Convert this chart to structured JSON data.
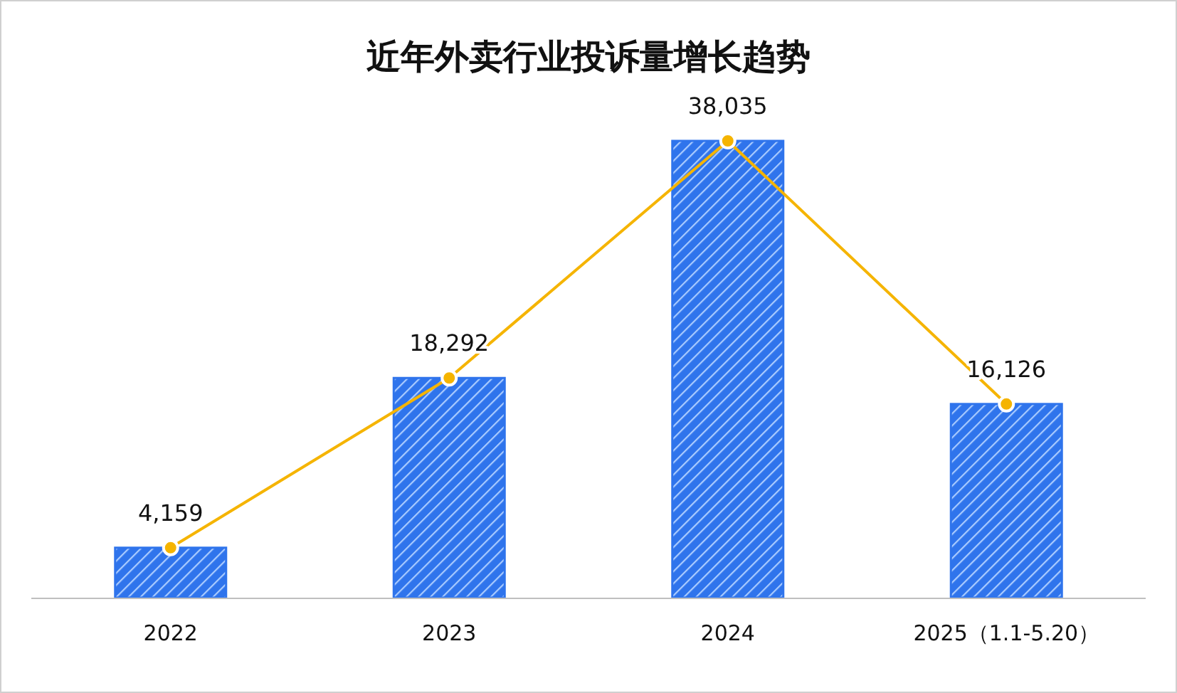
{
  "chart_data": {
    "type": "bar",
    "title": "近年外卖行业投诉量增长趋势",
    "categories": [
      "2022",
      "2023",
      "2024",
      "2025（1.1-5.20）"
    ],
    "series": [
      {
        "color": "#2f74ec",
        "values": [
          4159,
          18292,
          38035,
          16126
        ]
      },
      {
        "type": "line",
        "color": "#f5b400",
        "values": [
          4159,
          18292,
          38035,
          16126
        ],
        "value_labels": [
          "4,159",
          "18,292",
          "38,035",
          "16,126"
        ]
      }
    ],
    "marker": "circle"
  }
}
